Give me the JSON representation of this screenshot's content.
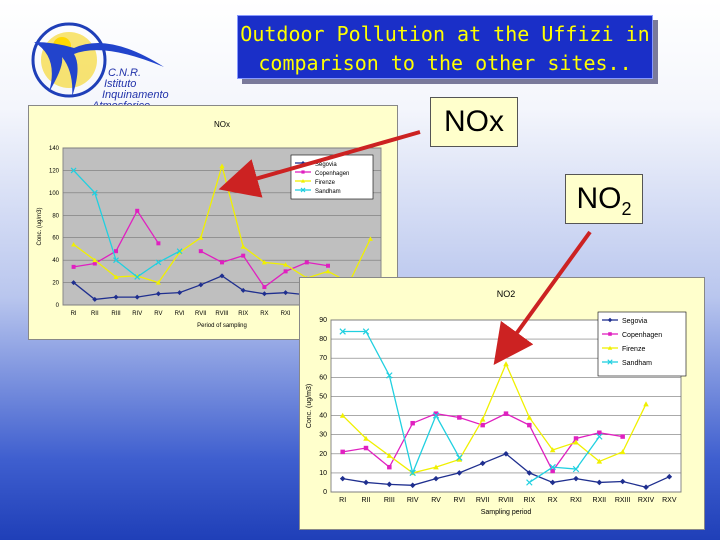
{
  "slide": {
    "title_line1": "Outdoor Pollution at the Uffizi in",
    "title_line2": "comparison to the other sites..",
    "logo_line1": "C.N.R.",
    "logo_line2": "Istituto",
    "logo_line3": "Inquinamento",
    "logo_line4": "Atmosferico",
    "nox_label": "NOx",
    "no2_label_main": "NO",
    "no2_label_sub": "2",
    "colors": {
      "title_bg": "#1a2fc8",
      "title_text": "#ffff00",
      "label_bg": "#ffffcc",
      "arrow": "#cc2222"
    }
  },
  "chart_data": [
    {
      "type": "line",
      "title": "NOx",
      "xlabel": "Period of sampling",
      "ylabel": "Conc. (ug/m3)",
      "ylim": [
        0,
        140
      ],
      "yticks": [
        0,
        20,
        40,
        60,
        80,
        100,
        120,
        140
      ],
      "categories": [
        "RI",
        "RII",
        "RIII",
        "RIV",
        "RV",
        "RVI",
        "RVII",
        "RVIII",
        "RIX",
        "RX",
        "RXI",
        "RXII",
        "RXIII",
        "RXIV",
        "RXV"
      ],
      "grid": true,
      "legend_position": "top-right",
      "series": [
        {
          "name": "Segovia",
          "color": "#1f2f8f",
          "marker": "diamond",
          "values": [
            20,
            5,
            7,
            7,
            10,
            11,
            18,
            26,
            13,
            10,
            11,
            9,
            null,
            null,
            null
          ]
        },
        {
          "name": "Copenhagen",
          "color": "#e020c0",
          "marker": "square",
          "values": [
            34,
            37,
            48,
            84,
            55,
            null,
            48,
            38,
            44,
            16,
            30,
            38,
            35,
            null,
            null
          ]
        },
        {
          "name": "Firenze",
          "color": "#f0f000",
          "marker": "triangle",
          "values": [
            54,
            40,
            25,
            26,
            20,
            47,
            60,
            124,
            52,
            38,
            36,
            24,
            30,
            20,
            59
          ]
        },
        {
          "name": "Sandham",
          "color": "#20d0e0",
          "marker": "x",
          "values": [
            120,
            100,
            40,
            25,
            38,
            48,
            null,
            null,
            null,
            null,
            null,
            null,
            null,
            null,
            null
          ]
        }
      ]
    },
    {
      "type": "line",
      "title": "NO2",
      "xlabel": "Sampling period",
      "ylabel": "Conc. (ug/m3)",
      "ylim": [
        0,
        90
      ],
      "yticks": [
        0,
        10,
        20,
        30,
        40,
        50,
        60,
        70,
        80,
        90
      ],
      "categories": [
        "RI",
        "RII",
        "RIII",
        "RIV",
        "RV",
        "RVI",
        "RVII",
        "RVIII",
        "RIX",
        "RX",
        "RXI",
        "RXII",
        "RXIII",
        "RXIV",
        "RXV"
      ],
      "grid": true,
      "legend_position": "top-right",
      "series": [
        {
          "name": "Segovia",
          "color": "#1f2f8f",
          "marker": "diamond",
          "values": [
            7,
            5,
            4,
            3.5,
            7,
            10,
            15,
            20,
            10,
            5,
            7,
            5,
            5.5,
            2.5,
            8
          ]
        },
        {
          "name": "Copenhagen",
          "color": "#e020c0",
          "marker": "square",
          "values": [
            21,
            23,
            13,
            36,
            41,
            39,
            35,
            41,
            35,
            11,
            28,
            31,
            29,
            null,
            null
          ]
        },
        {
          "name": "Firenze",
          "color": "#f0f000",
          "marker": "triangle",
          "values": [
            40,
            28,
            19,
            10,
            13,
            17,
            38,
            67,
            39,
            22,
            26,
            16,
            21,
            46,
            null
          ]
        },
        {
          "name": "Sandham",
          "color": "#20d0e0",
          "marker": "x",
          "values": [
            84,
            84,
            61,
            10,
            40,
            18,
            null,
            null,
            5,
            13,
            12,
            29,
            null,
            null,
            null
          ]
        }
      ]
    }
  ]
}
